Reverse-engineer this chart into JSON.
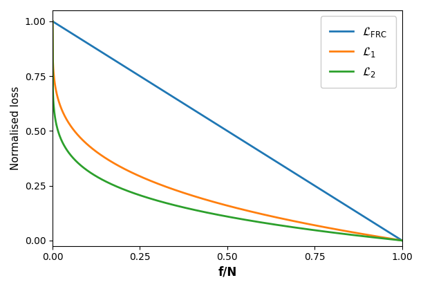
{
  "title": "",
  "xlabel": "f/N",
  "ylabel": "Normalised loss",
  "xlim": [
    0.0,
    1.0
  ],
  "ylim": [
    -0.025,
    1.05
  ],
  "frc_color": "#1f77b4",
  "l1_color": "#ff7f0e",
  "l2_color": "#2ca02c",
  "linewidth": 2.0,
  "legend_labels": [
    "$\\mathcal{L}_{\\mathrm{FRC}}$",
    "$\\mathcal{L}_1$",
    "$\\mathcal{L}_2$"
  ],
  "n_points": 1000,
  "frc_power": 1.0,
  "l1_exp": 10.0,
  "l2_exp": 18.0
}
